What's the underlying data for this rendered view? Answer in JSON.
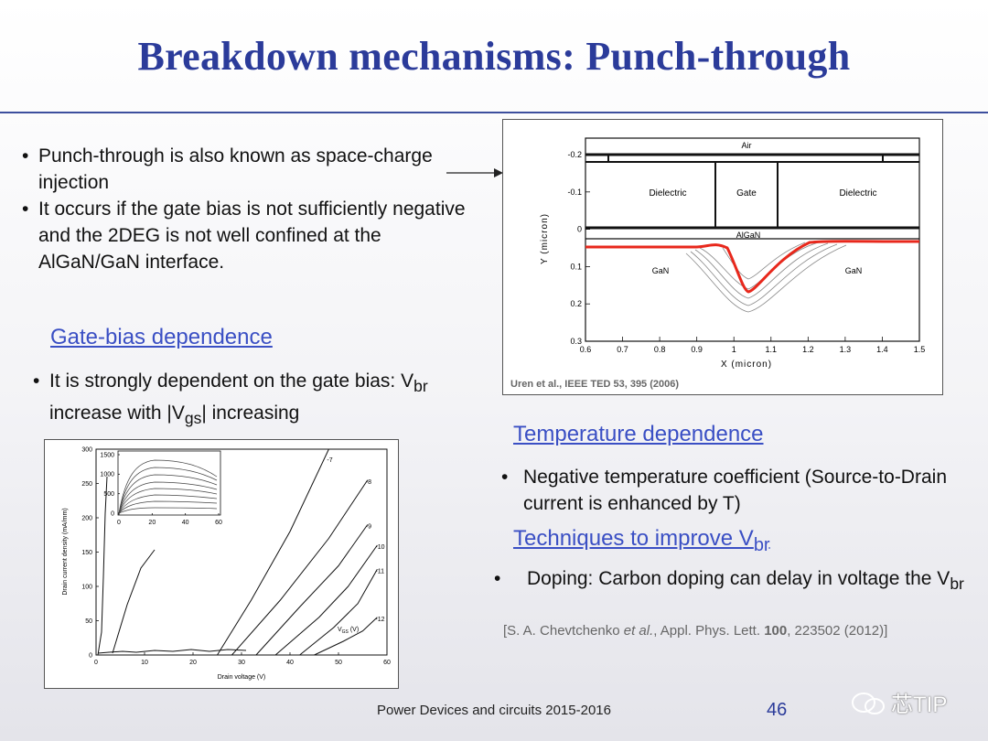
{
  "slide": {
    "title": "Breakdown mechanisms: Punch-through",
    "intro_bullets": [
      "Punch-through is also known as space-charge injection",
      "It occurs if the gate bias is not sufficiently negative and the 2DEG is not well confined at the AlGaN/GaN interface."
    ],
    "gate_heading": "Gate-bias dependence",
    "gate_bullet_pre": "It is strongly dependent on the gate bias: V",
    "gate_bullet_sub1": "br",
    "gate_bullet_mid": " increase with |V",
    "gate_bullet_sub2": "gs",
    "gate_bullet_post": "| increasing",
    "temp_heading": "Temperature dependence",
    "temp_bullet": "Negative temperature coefficient (Source-to-Drain current is enhanced by T)",
    "tech_heading_pre": "Techniques to improve V",
    "tech_heading_sub": "br",
    "tech_bullet_pre": "Doping: Carbon doping can delay in voltage the V",
    "tech_bullet_sub": "br",
    "citation_pre": "[S. A. Chevtchenko ",
    "citation_italic": "et al.",
    "citation_mid": ", Appl. Phys. Lett. ",
    "citation_bold": "100",
    "citation_post": ", 223502 (2012)]",
    "footer": "Power Devices and circuits 2015-2016",
    "page_number": "46",
    "watermark": "芯TIP",
    "colors": {
      "title": "#2b3b9a",
      "heading": "#3a4fc4",
      "curve_red": "#e8281c"
    }
  },
  "figure_sim": {
    "source": "Uren et al., IEEE TED 53, 395 (2006)",
    "x_label": "X (micron)",
    "y_label": "Y (micron)",
    "x_ticks": [
      "0.6",
      "0.7",
      "0.8",
      "0.9",
      "1",
      "1.1",
      "1.2",
      "1.3",
      "1.4",
      "1.5"
    ],
    "y_ticks": [
      "-0.2",
      "-0.1",
      "0",
      "0.1",
      "0.2",
      "0.3"
    ],
    "region_labels": {
      "air": "Air",
      "dielectric_left": "Dielectric",
      "gate": "Gate",
      "dielectric_right": "Dielectric",
      "algan": "AlGaN",
      "gan_left": "GaN",
      "gan_right": "GaN"
    }
  },
  "figure_meas": {
    "x_label": "Drain voltage (V)",
    "y_label": "Drain current density (mA/mm)",
    "vgs_label": "V",
    "vgs_sub": "GS",
    "vgs_unit": " (V)",
    "x_ticks": [
      "0",
      "10",
      "20",
      "30",
      "40",
      "50",
      "60"
    ],
    "y_ticks": [
      "0",
      "50",
      "100",
      "150",
      "200",
      "250",
      "300"
    ],
    "inset_x_ticks": [
      "0",
      "20",
      "40",
      "60"
    ],
    "inset_y_ticks": [
      "0",
      "500",
      "1000",
      "1500"
    ],
    "curve_labels": [
      "-7",
      "-8",
      "-9",
      "-10",
      "-11",
      "-12"
    ]
  },
  "chart_data": {
    "type": "line",
    "xlabel": "Drain voltage (V)",
    "ylabel": "Drain current density (mA/mm)",
    "xlim": [
      0,
      60
    ],
    "ylim": [
      0,
      300
    ],
    "series": [
      {
        "name": "-7",
        "x": [
          25,
          32,
          40,
          48
        ],
        "y": [
          0,
          80,
          180,
          300
        ]
      },
      {
        "name": "-8",
        "x": [
          28,
          38,
          48,
          56
        ],
        "y": [
          0,
          80,
          170,
          255
        ]
      },
      {
        "name": "-9",
        "x": [
          33,
          42,
          50,
          56
        ],
        "y": [
          0,
          70,
          130,
          190
        ]
      },
      {
        "name": "-10",
        "x": [
          37,
          46,
          52,
          58
        ],
        "y": [
          0,
          55,
          100,
          160
        ]
      },
      {
        "name": "-11",
        "x": [
          42,
          49,
          54,
          58
        ],
        "y": [
          0,
          40,
          75,
          125
        ]
      },
      {
        "name": "-12",
        "x": [
          45,
          51,
          55,
          58
        ],
        "y": [
          0,
          20,
          35,
          55
        ]
      }
    ]
  }
}
